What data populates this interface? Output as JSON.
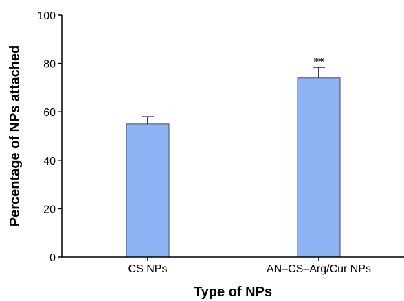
{
  "chart_data": {
    "type": "bar",
    "title": "",
    "xlabel": "Type of NPs",
    "ylabel": "Percentage of NPs attached",
    "categories": [
      "CS NPs",
      "AN–CS–Arg/Cur NPs"
    ],
    "values": [
      55,
      74
    ],
    "errors": [
      3,
      4.5
    ],
    "annotations": [
      "",
      "**"
    ],
    "ylim": [
      0,
      100
    ],
    "yticks": [
      0,
      20,
      40,
      60,
      80,
      100
    ],
    "ytick_labels": [
      "0",
      "20",
      "40",
      "60",
      "80",
      "100"
    ],
    "grid": false,
    "bar_color": "#8fb4f5",
    "bar_edge_color": "#3b4a6b"
  }
}
